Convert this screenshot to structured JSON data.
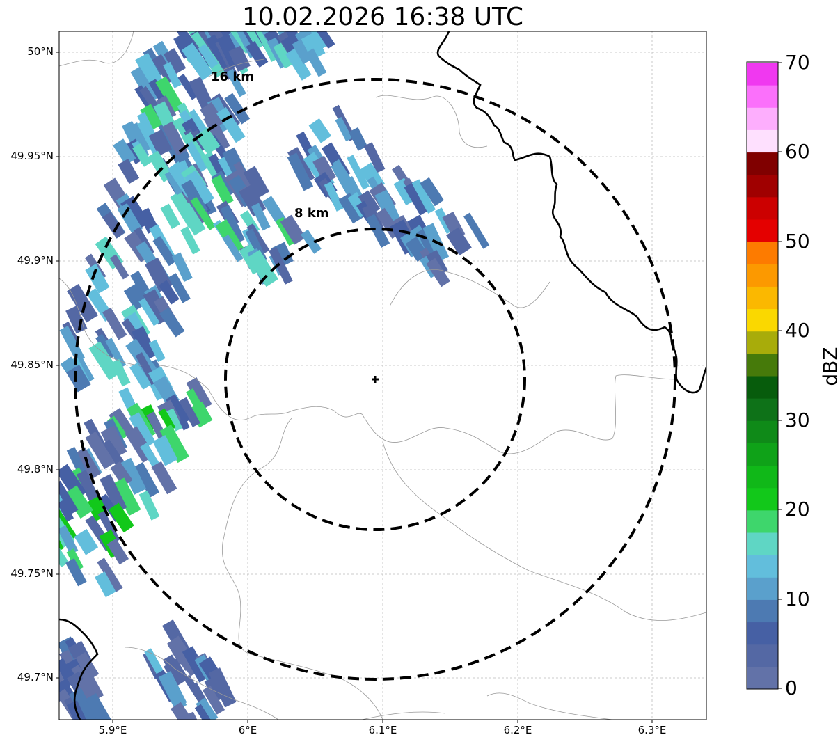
{
  "title": "10.02.2026 16:38 UTC",
  "map": {
    "lat_labels": [
      "50°N",
      "49.95°N",
      "49.9°N",
      "49.85°N",
      "49.8°N",
      "49.75°N",
      "49.7°N"
    ],
    "lon_labels": [
      "5.9°E",
      "6°E",
      "6.1°E",
      "6.2°E",
      "6.3°E"
    ],
    "radar_site": {
      "lat": 49.843,
      "lon": 6.094
    },
    "rings": [
      {
        "label": "8 km",
        "radius_km": 8
      },
      {
        "label": "16 km",
        "radius_km": 16
      }
    ],
    "colors": {
      "border": "#000000",
      "admin": "#999999",
      "grid": "#bbbbbb"
    }
  },
  "colorbar": {
    "label": "dBZ",
    "ticks": [
      "0",
      "10",
      "20",
      "30",
      "40",
      "50",
      "60",
      "70"
    ],
    "colors": [
      "#6272a8",
      "#5468a4",
      "#4660a4",
      "#4d7ab2",
      "#5aa0cc",
      "#62bedc",
      "#5fd6c4",
      "#3ed66c",
      "#12c81a",
      "#10b818",
      "#0fa218",
      "#0f8a18",
      "#0e7218",
      "#075c0c",
      "#467a0a",
      "#a8ac0a",
      "#fad800",
      "#fbb800",
      "#fc9900",
      "#fd7b00",
      "#e40000",
      "#cc0000",
      "#a00000",
      "#800000",
      "#fee0fe",
      "#fdaefd",
      "#fb70fb",
      "#f038f0"
    ]
  }
}
